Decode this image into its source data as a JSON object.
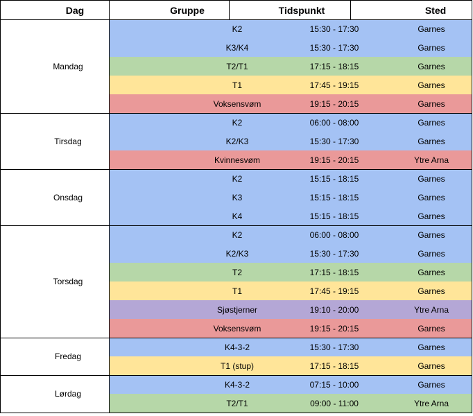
{
  "header": [
    "Dag",
    "Gruppe",
    "Tidspunkt",
    "Sted"
  ],
  "days": [
    {
      "name": "Mandag",
      "rows": [
        {
          "group": "K2",
          "time": "15:30 - 17:30",
          "place": "Garnes",
          "color": "#a4c2f4"
        },
        {
          "group": "K3/K4",
          "time": "15:30 - 17:30",
          "place": "Garnes",
          "color": "#a4c2f4"
        },
        {
          "group": "T2/T1",
          "time": "17:15 - 18:15",
          "place": "Garnes",
          "color": "#b6d7a8"
        },
        {
          "group": "T1",
          "time": "17:45 - 19:15",
          "place": "Garnes",
          "color": "#ffe599"
        },
        {
          "group": "Voksensvøm",
          "time": "19:15 - 20:15",
          "place": "Garnes",
          "color": "#ea9999"
        }
      ]
    },
    {
      "name": "Tirsdag",
      "rows": [
        {
          "group": "K2",
          "time": "06:00 - 08:00",
          "place": "Garnes",
          "color": "#a4c2f4"
        },
        {
          "group": "K2/K3",
          "time": "15:30 - 17:30",
          "place": "Garnes",
          "color": "#a4c2f4"
        },
        {
          "group": "Kvinnesvøm",
          "time": "19:15 - 20:15",
          "place": "Ytre Arna",
          "color": "#ea9999"
        }
      ]
    },
    {
      "name": "Onsdag",
      "rows": [
        {
          "group": "K2",
          "time": "15:15 - 18:15",
          "place": "Garnes",
          "color": "#a4c2f4"
        },
        {
          "group": "K3",
          "time": "15:15 - 18:15",
          "place": "Garnes",
          "color": "#a4c2f4"
        },
        {
          "group": "K4",
          "time": "15:15 - 18:15",
          "place": "Garnes",
          "color": "#a4c2f4"
        }
      ]
    },
    {
      "name": "Torsdag",
      "rows": [
        {
          "group": "K2",
          "time": "06:00 - 08:00",
          "place": "Garnes",
          "color": "#a4c2f4"
        },
        {
          "group": "K2/K3",
          "time": "15:30 - 17:30",
          "place": "Garnes",
          "color": "#a4c2f4"
        },
        {
          "group": "T2",
          "time": "17:15 - 18:15",
          "place": "Garnes",
          "color": "#b6d7a8"
        },
        {
          "group": "T1",
          "time": "17:45 - 19:15",
          "place": "Garnes",
          "color": "#ffe599"
        },
        {
          "group": "Sjøstjerner",
          "time": "19:10 - 20:00",
          "place": "Ytre Arna",
          "color": "#b4a7d6"
        },
        {
          "group": "Voksensvøm",
          "time": "19:15 - 20:15",
          "place": "Garnes",
          "color": "#ea9999"
        }
      ]
    },
    {
      "name": "Fredag",
      "rows": [
        {
          "group": "K4-3-2",
          "time": "15:30 - 17:30",
          "place": "Garnes",
          "color": "#a4c2f4"
        },
        {
          "group": "T1 (stup)",
          "time": "17:15 - 18:15",
          "place": "Garnes",
          "color": "#ffe599"
        }
      ]
    },
    {
      "name": "Lørdag",
      "rows": [
        {
          "group": "K4-3-2",
          "time": "07:15 - 10:00",
          "place": "Garnes",
          "color": "#a4c2f4"
        },
        {
          "group": "T2/T1",
          "time": "09:00 - 11:00",
          "place": "Ytre Arna",
          "color": "#b6d7a8"
        }
      ]
    }
  ]
}
